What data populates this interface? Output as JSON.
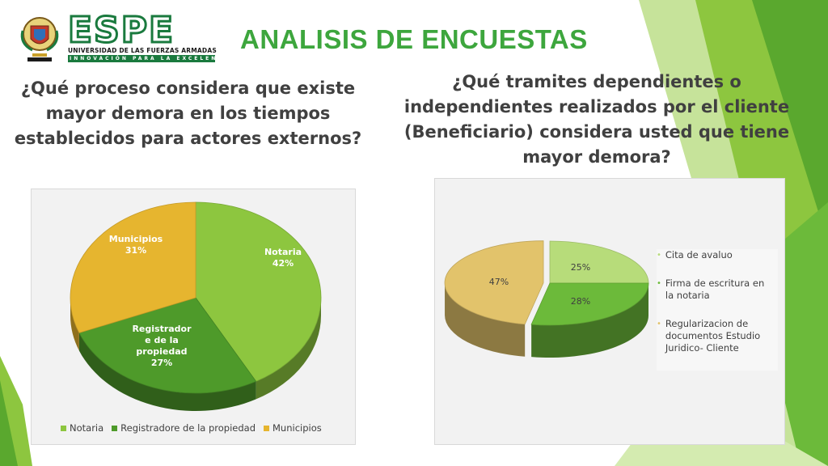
{
  "logo": {
    "wordmark": "ESPE",
    "subtitle": "UNIVERSIDAD DE LAS FUERZAS ARMADAS",
    "tagline": "INNOVACIÓN PARA LA EXCELENCIA"
  },
  "slide": {
    "title": "ANALISIS DE ENCUESTAS"
  },
  "question1": "¿Qué proceso considera que existe mayor demora en los tiempos establecidos para actores externos?",
  "question2": "¿Qué tramites dependientes o independientes realizados por el cliente (Beneficiario) considera usted que tiene mayor demora?",
  "colors": {
    "title": "#3da63d",
    "light_green": "#8dc63f",
    "mid_green": "#5aa82e",
    "yellow": "#e6b52f",
    "pale_green": "#b7dc7a"
  },
  "chart_data": [
    {
      "type": "pie",
      "title": "",
      "slices": [
        {
          "name": "Notaria",
          "value": 42,
          "label_lines": [
            "Notaria",
            "42%"
          ],
          "color": "#8dc63f"
        },
        {
          "name": "Registradore de la propiedad",
          "value": 27,
          "label_lines": [
            "Registrador",
            "e de la",
            "propiedad",
            "27%"
          ],
          "color": "#4e9a2a"
        },
        {
          "name": "Municipios",
          "value": 31,
          "label_lines": [
            "Municipios",
            "31%"
          ],
          "color": "#e6b52f"
        }
      ],
      "legend": [
        "Notaria",
        "Registradore de la propiedad",
        "Municipios"
      ],
      "legend_position": "bottom"
    },
    {
      "type": "pie",
      "title": "",
      "slices": [
        {
          "name": "Cita de avaluo",
          "value": 25,
          "label": "25%",
          "color": "#b7dc7a"
        },
        {
          "name": "Firma de escritura en la notaria",
          "value": 28,
          "label": "28%",
          "color": "#6cba3a"
        },
        {
          "name": "Regularizacion de documentos Estudio Juridico- Cliente",
          "value": 47,
          "label": "47%",
          "color": "#e2c36b"
        }
      ],
      "legend": [
        [
          "Cita de avaluo"
        ],
        [
          "Firma de escritura en",
          "la notaria"
        ],
        [
          "Regularizacion de",
          "documentos   Estudio",
          "Juridico- Cliente"
        ]
      ],
      "legend_position": "right"
    }
  ]
}
